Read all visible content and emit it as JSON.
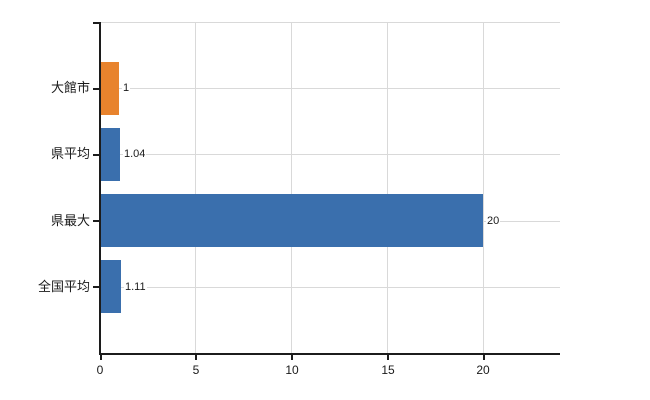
{
  "chart_data": {
    "type": "bar",
    "orientation": "horizontal",
    "title": "",
    "xlabel": "",
    "ylabel": "",
    "categories": [
      "大館市",
      "県平均",
      "県最大",
      "全国平均"
    ],
    "values": [
      1,
      1.04,
      20,
      1.11
    ],
    "value_labels": [
      "1",
      "1.04",
      "20",
      "1.11"
    ],
    "bar_colors": [
      "#e8832d",
      "#3a6fad",
      "#3a6fad",
      "#3a6fad"
    ],
    "xticks": [
      0,
      5,
      10,
      15,
      20
    ],
    "xtick_labels": [
      "0",
      "5",
      "10",
      "15",
      "20"
    ],
    "xlim": [
      0,
      24
    ],
    "grid": true,
    "legend_position": "none"
  },
  "colors": {
    "highlight_bar": "#e8832d",
    "default_bar": "#3a6fad",
    "gridline": "#d9d9d9",
    "axis": "#1c1c1c",
    "text": "#1a1a1a",
    "background": "#ffffff"
  }
}
